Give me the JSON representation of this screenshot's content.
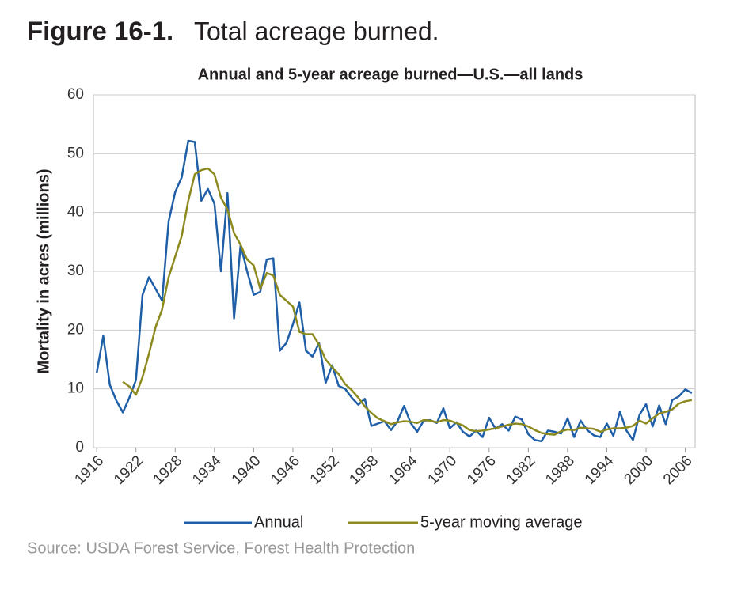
{
  "chart_data": {
    "type": "line",
    "figure_label": "Figure 16-1.",
    "title": "Total acreage burned.",
    "subtitle": "Annual and 5-year acreage burned—U.S.—all lands",
    "y_label": "Mortality in acres (millions)",
    "source": "Source: USDA Forest Service, Forest Health Protection",
    "x": [
      1916,
      1917,
      1918,
      1919,
      1920,
      1921,
      1922,
      1923,
      1924,
      1925,
      1926,
      1927,
      1928,
      1929,
      1930,
      1931,
      1932,
      1933,
      1934,
      1935,
      1936,
      1937,
      1938,
      1939,
      1940,
      1941,
      1942,
      1943,
      1944,
      1945,
      1946,
      1947,
      1948,
      1949,
      1950,
      1951,
      1952,
      1953,
      1954,
      1955,
      1956,
      1957,
      1958,
      1959,
      1960,
      1961,
      1962,
      1963,
      1964,
      1965,
      1966,
      1967,
      1968,
      1969,
      1970,
      1971,
      1972,
      1973,
      1974,
      1975,
      1976,
      1977,
      1978,
      1979,
      1980,
      1981,
      1982,
      1983,
      1984,
      1985,
      1986,
      1987,
      1988,
      1989,
      1990,
      1991,
      1992,
      1993,
      1994,
      1995,
      1996,
      1997,
      1998,
      1999,
      2000,
      2001,
      2002,
      2003,
      2004,
      2005,
      2006,
      2007
    ],
    "series": [
      {
        "name": "Annual",
        "color": "#1f5fa8",
        "values": [
          12.7,
          19,
          10.7,
          8,
          6,
          8.5,
          11.5,
          26,
          29,
          27,
          25,
          38.5,
          43.5,
          46,
          52.2,
          52,
          42,
          44,
          41.5,
          30,
          43.3,
          22,
          34.5,
          30,
          26,
          26.5,
          32,
          32.2,
          16.5,
          17.8,
          21,
          24.7,
          16.5,
          15.5,
          17.8,
          11,
          14,
          10.5,
          10,
          8.5,
          7.3,
          8.3,
          3.7,
          4.1,
          4.5,
          3.0,
          4.5,
          7.1,
          4.2,
          2.7,
          4.6,
          4.7,
          4.2,
          6.7,
          3.3,
          4.3,
          2.7,
          1.9,
          2.9,
          1.8,
          5.1,
          3.2,
          4.0,
          2.9,
          5.3,
          4.8,
          2.3,
          1.3,
          1.1,
          2.9,
          2.7,
          2.4,
          5.0,
          1.8,
          4.6,
          3.0,
          2.1,
          1.8,
          4.1,
          2.0,
          6.1,
          2.9,
          1.3,
          5.6,
          7.4,
          3.6,
          7.2,
          4.0,
          8.1,
          8.7,
          9.9,
          9.3
        ]
      },
      {
        "name": "5-year moving average",
        "color": "#8c8a1f",
        "values": [
          null,
          null,
          null,
          null,
          11.2,
          10.4,
          9,
          12,
          16,
          20.5,
          23.5,
          29,
          32.5,
          36,
          42,
          46.5,
          47.2,
          47.5,
          46.5,
          42.5,
          40.5,
          36.5,
          34.5,
          32,
          31,
          27,
          29.7,
          29.3,
          26,
          25,
          24,
          19.7,
          19.3,
          19.3,
          17.5,
          15,
          13.7,
          12.5,
          10.8,
          9.8,
          8.5,
          7,
          5.9,
          5.0,
          4.5,
          4.0,
          4.3,
          4.5,
          4.4,
          4.2,
          4.7,
          4.6,
          4.3,
          4.7,
          4.6,
          4.2,
          3.8,
          3.0,
          2.8,
          2.9,
          3.1,
          3.3,
          3.6,
          3.9,
          4.1,
          4.0,
          3.6,
          3.0,
          2.5,
          2.3,
          2.2,
          2.8,
          3.1,
          3.0,
          3.4,
          3.3,
          3.2,
          2.7,
          3.1,
          3.3,
          3.3,
          3.4,
          3.7,
          4.6,
          4.1,
          5.0,
          5.8,
          6.1,
          6.5,
          7.5,
          7.9,
          8.1
        ]
      }
    ],
    "xlim": [
      1915.5,
      2007.5
    ],
    "xticks": [
      1916,
      1922,
      1928,
      1934,
      1940,
      1946,
      1952,
      1958,
      1964,
      1970,
      1976,
      1982,
      1988,
      1994,
      2000,
      2006
    ],
    "ylim": [
      0,
      60
    ],
    "yticks": [
      0,
      10,
      20,
      30,
      40,
      50,
      60
    ],
    "grid": true
  }
}
